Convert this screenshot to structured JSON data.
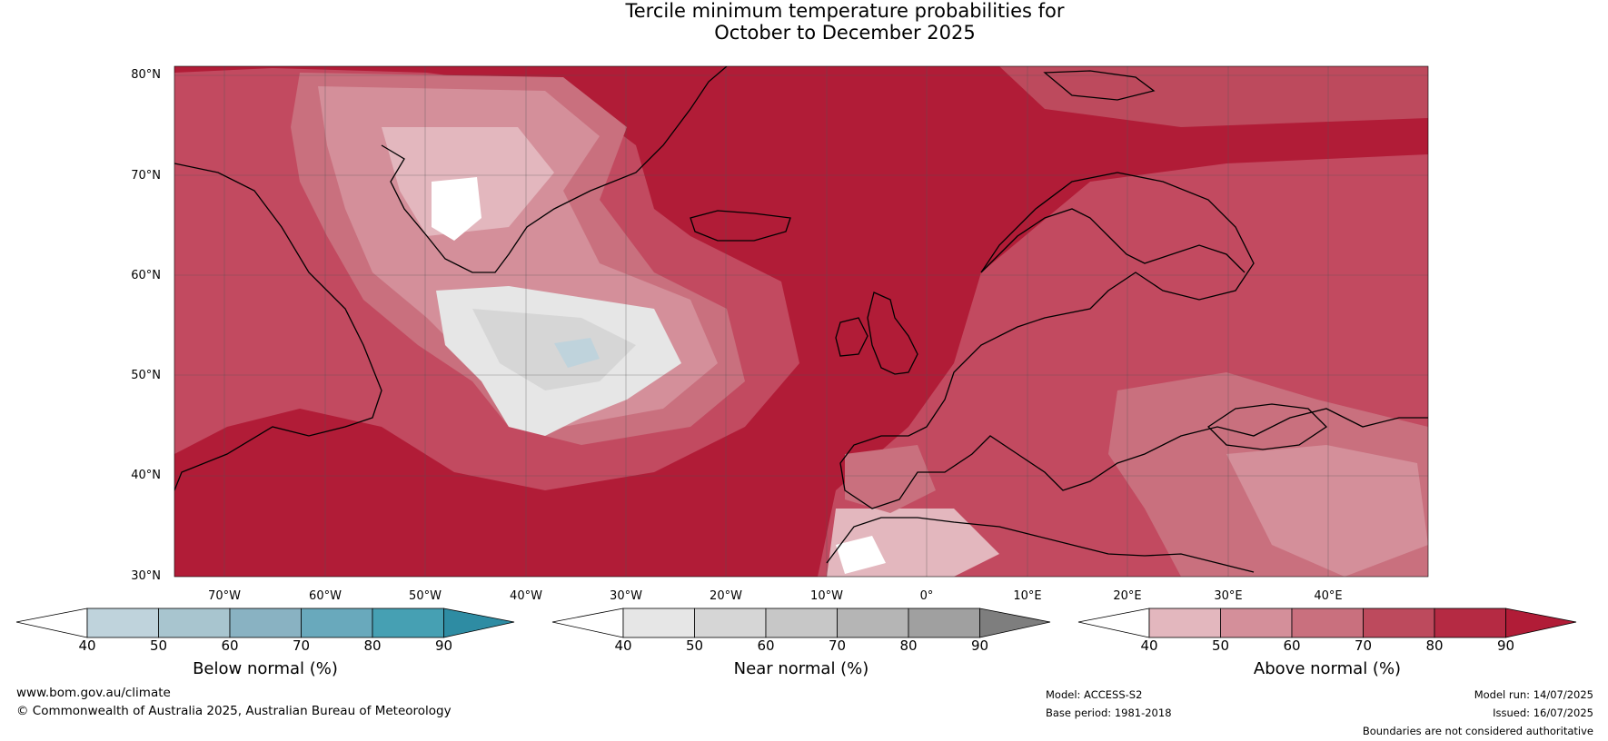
{
  "title": {
    "line1": "Tercile minimum temperature probabilities for",
    "line2": "October to December 2025"
  },
  "map": {
    "lat_labels": [
      "80°N",
      "70°N",
      "60°N",
      "50°N",
      "40°N",
      "30°N"
    ],
    "lon_labels": [
      "70°W",
      "60°W",
      "50°W",
      "40°W",
      "30°W",
      "20°W",
      "10°W",
      "0°",
      "10°E",
      "20°E",
      "30°E",
      "40°E"
    ],
    "background_color": "#b11c37"
  },
  "colorbars": [
    {
      "title": "Below normal (%)",
      "ticks": [
        "40",
        "50",
        "60",
        "70",
        "80",
        "90"
      ],
      "colors": [
        "#ffffff",
        "#bfd3dc",
        "#a8c5cf",
        "#89b2c2",
        "#69a9bc",
        "#46a0b3",
        "#2e8ca3"
      ]
    },
    {
      "title": "Near normal (%)",
      "ticks": [
        "40",
        "50",
        "60",
        "70",
        "80",
        "90"
      ],
      "colors": [
        "#ffffff",
        "#e6e6e6",
        "#d6d6d6",
        "#c7c7c7",
        "#b5b5b5",
        "#a0a0a0",
        "#7e7e7e"
      ]
    },
    {
      "title": "Above normal (%)",
      "ticks": [
        "40",
        "50",
        "60",
        "70",
        "80",
        "90"
      ],
      "colors": [
        "#ffffff",
        "#e3b7be",
        "#d48f9a",
        "#c9707e",
        "#bd4a5d",
        "#b52a43",
        "#b11c37"
      ]
    }
  ],
  "footer": {
    "website": "www.bom.gov.au/climate",
    "copyright": "© Commonwealth of Australia 2025, Australian Bureau of Meteorology",
    "model": "Model: ACCESS-S2",
    "base_period": "Base period: 1981-2018",
    "model_run": "Model run: 14/07/2025",
    "issued": "Issued: 16/07/2025",
    "disclaimer": "Boundaries are not considered authoritative"
  }
}
